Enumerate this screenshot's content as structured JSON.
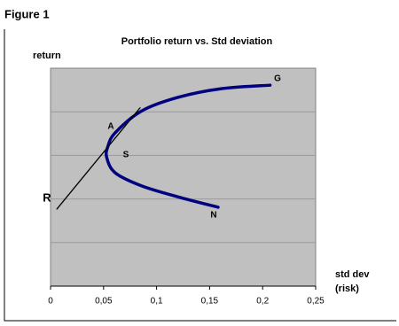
{
  "figure_label": "Figure 1",
  "chart_data": {
    "type": "line",
    "title": "Portfolio return vs. Std deviation",
    "y_label": "return",
    "x_label": [
      "std dev",
      "(risk)"
    ],
    "xlim": [
      0,
      0.25
    ],
    "xticks": [
      {
        "value": 0,
        "label": "0"
      },
      {
        "value": 0.05,
        "label": "0,05"
      },
      {
        "value": 0.1,
        "label": "0,1"
      },
      {
        "value": 0.15,
        "label": "0,15"
      },
      {
        "value": 0.2,
        "label": "0,2"
      },
      {
        "value": 0.25,
        "label": "0,25"
      }
    ],
    "ylim": [
      0,
      5
    ],
    "y_gridlines": [
      1,
      2,
      3,
      4
    ],
    "plot_background": "#c0c0c0",
    "series": [
      {
        "color": "#000080",
        "x": [
          0.158,
          0.12,
          0.086,
          0.061,
          0.053,
          0.054,
          0.061,
          0.086,
          0.12,
          0.161,
          0.207
        ],
        "values": [
          1.81,
          2.05,
          2.3,
          2.6,
          2.95,
          3.2,
          3.52,
          4.02,
          4.33,
          4.53,
          4.61
        ]
      },
      {
        "color": "#000000",
        "x": [
          0.006,
          0.0844
        ],
        "values": [
          1.77,
          4.09
        ]
      }
    ],
    "annotations": [
      "A",
      "S",
      "G",
      "N",
      "R"
    ]
  }
}
